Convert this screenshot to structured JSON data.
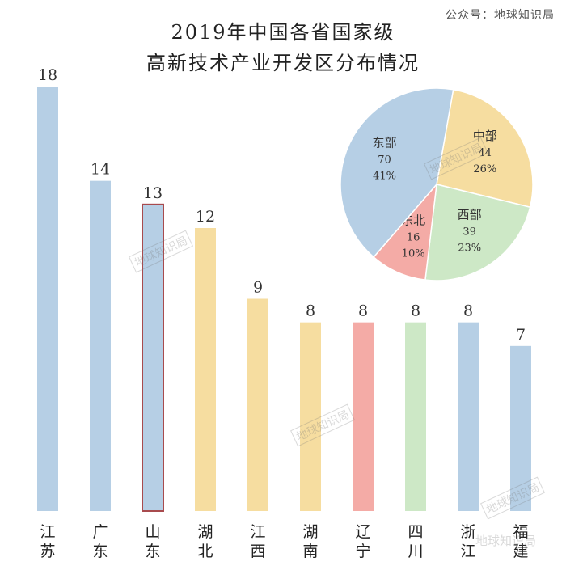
{
  "source_label": "公众号：地球知识局",
  "watermark": "地球知识局",
  "chart_data": [
    {
      "type": "bar",
      "title_line1": "2019年中国各省国家级",
      "title_line2": "高新技术产业开发区分布情况",
      "categories": [
        "江苏",
        "广东",
        "山东",
        "湖北",
        "江西",
        "湖南",
        "辽宁",
        "四川",
        "浙江",
        "福建"
      ],
      "values": [
        18,
        14,
        13,
        12,
        9,
        8,
        8,
        8,
        8,
        7
      ],
      "bar_colors": [
        "#b6cfe5",
        "#b6cfe5",
        "#b6cfe5",
        "#f6dda0",
        "#f6dda0",
        "#f6dda0",
        "#f4aba6",
        "#cde8c6",
        "#b6cfe5",
        "#b6cfe5"
      ],
      "highlight_index": 2,
      "highlight_color": "#a84b4e",
      "ylim": [
        0,
        18
      ]
    },
    {
      "type": "pie",
      "slices": [
        {
          "name": "中部",
          "value": 44,
          "percent": "26%",
          "color": "#f6dda0"
        },
        {
          "name": "西部",
          "value": 39,
          "percent": "23%",
          "color": "#cde8c6"
        },
        {
          "name": "东北",
          "value": 16,
          "percent": "10%",
          "color": "#f4aba6"
        },
        {
          "name": "东部",
          "value": 70,
          "percent": "41%",
          "color": "#b6cfe5"
        }
      ]
    }
  ]
}
